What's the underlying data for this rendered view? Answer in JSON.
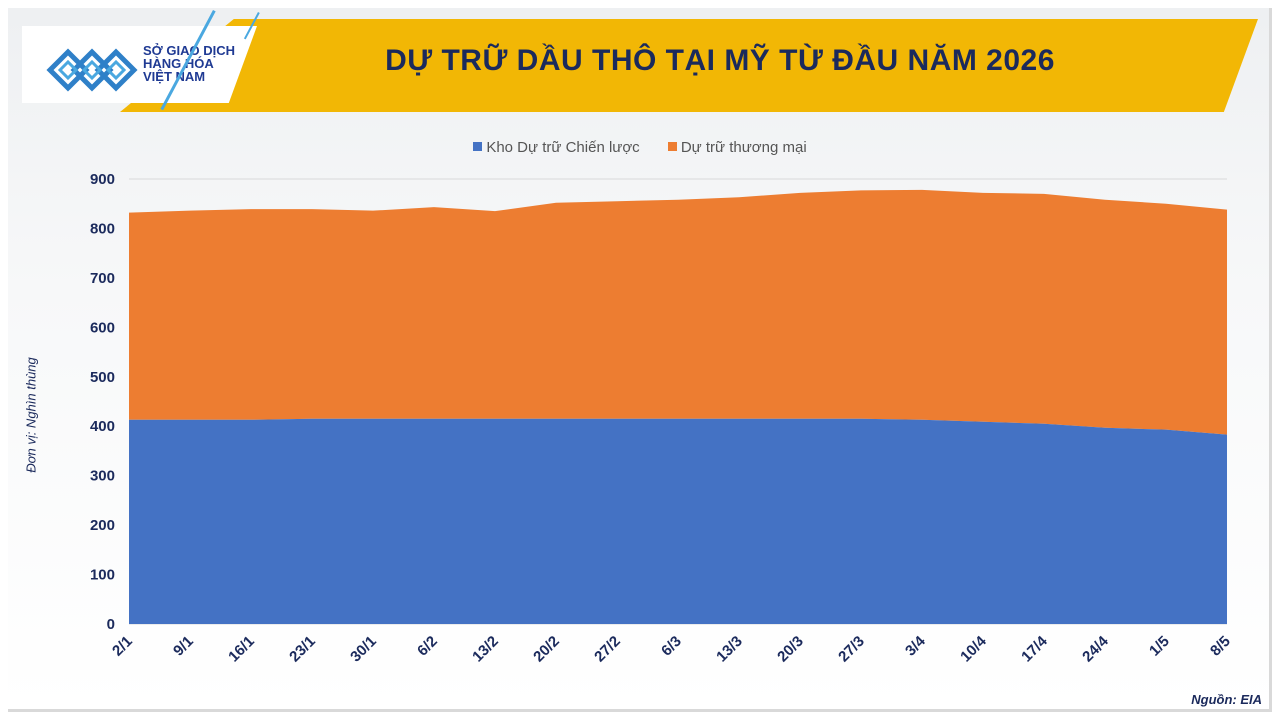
{
  "header": {
    "logo_lines": [
      "SỞ GIAO DỊCH",
      "HÀNG HÓA",
      "VIỆT NAM"
    ],
    "title": "DỰ TRỮ DẦU THÔ TẠI MỸ TỪ ĐẦU NĂM 2026"
  },
  "ylabel": "Đơn vị: Nghìn thùng",
  "source": "Nguồn: EIA",
  "colors": {
    "strategic": "#4472c4",
    "commercial": "#ed7d31",
    "banner": "#f2b705",
    "text": "#1b2a5c"
  },
  "chart_data": {
    "type": "area",
    "stacked": true,
    "title": "DỰ TRỮ DẦU THÔ TẠI MỸ TỪ ĐẦU NĂM 2026",
    "xlabel": "",
    "ylabel": "Đơn vị: Nghìn thùng",
    "ylim": [
      0,
      900
    ],
    "yticks": [
      0,
      100,
      200,
      300,
      400,
      500,
      600,
      700,
      800,
      900
    ],
    "grid": true,
    "legend_position": "top",
    "categories": [
      "2/1",
      "9/1",
      "16/1",
      "23/1",
      "30/1",
      "6/2",
      "13/2",
      "20/2",
      "27/2",
      "6/3",
      "13/3",
      "20/3",
      "27/3",
      "3/4",
      "10/4",
      "17/4",
      "24/4",
      "1/5",
      "8/5"
    ],
    "series": [
      {
        "name": "Kho Dự trữ Chiến lược",
        "color": "#4472c4",
        "values": [
          413,
          413,
          413,
          415,
          415,
          415,
          415,
          415,
          415,
          415,
          415,
          415,
          415,
          413,
          409,
          405,
          397,
          393,
          383
        ]
      },
      {
        "name": "Dự trữ thương mại",
        "color": "#ed7d31",
        "values": [
          419,
          423,
          426,
          424,
          421,
          428,
          420,
          437,
          440,
          443,
          448,
          457,
          462,
          465,
          463,
          465,
          461,
          457,
          455
        ]
      }
    ]
  }
}
